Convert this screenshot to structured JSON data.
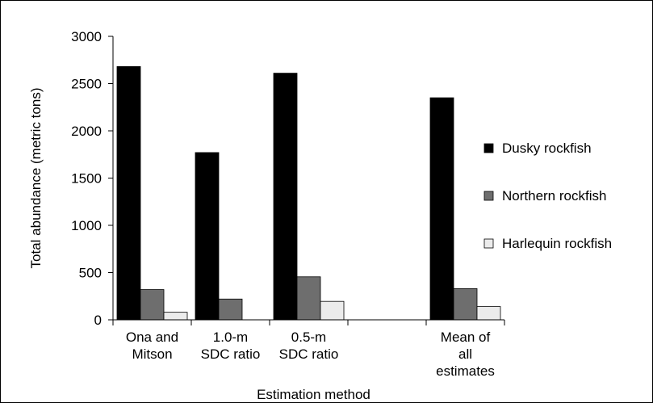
{
  "chart_data": {
    "type": "bar",
    "title": "",
    "xlabel": "Estimation method",
    "ylabel": "Total abundance (metric tons)",
    "ylim": [
      0,
      3000
    ],
    "yticks": [
      0,
      500,
      1000,
      1500,
      2000,
      2500,
      3000
    ],
    "grid": false,
    "legend_position": "right",
    "categories": [
      [
        "Ona and",
        "Mitson"
      ],
      [
        "1.0-m",
        "SDC ratio"
      ],
      [
        "0.5-m",
        "SDC ratio"
      ],
      [],
      [
        "Mean of",
        "all",
        "estimates"
      ]
    ],
    "series": [
      {
        "name": "Dusky rockfish",
        "color": "#000000",
        "values": [
          2680,
          1770,
          2610,
          null,
          2350
        ]
      },
      {
        "name": "Northern rockfish",
        "color": "#6e6e6e",
        "values": [
          320,
          220,
          455,
          null,
          330
        ]
      },
      {
        "name": "Harlequin rockfish",
        "color": "#ececec",
        "values": [
          80,
          0,
          195,
          null,
          140
        ]
      }
    ]
  }
}
